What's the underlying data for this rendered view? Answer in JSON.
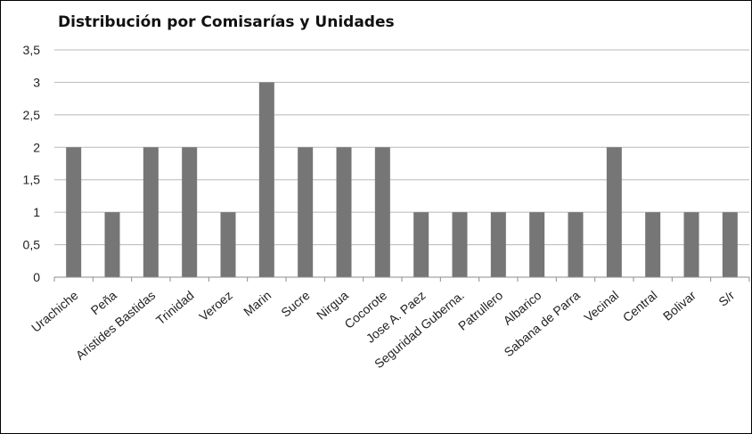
{
  "chart_data": {
    "type": "bar",
    "title": "Distribución por Comisarías y Unidades",
    "xlabel": "",
    "ylabel": "",
    "ylim": [
      0,
      3.5
    ],
    "yticks": [
      "0",
      "0,5",
      "1",
      "1,5",
      "2",
      "2,5",
      "3",
      "3,5"
    ],
    "grid": true,
    "legend": "none",
    "bar_color": "#767676",
    "categories": [
      "Urachiche",
      "Peña",
      "Aristides Bastidas",
      "Trinidad",
      "Veroez",
      "Marin",
      "Sucre",
      "Nirgua",
      "Cocorote",
      "Jose A. Paez",
      "Seguridad Guberna.",
      "Patrullero",
      "Albarico",
      "Sabana de Parra",
      "Vecinal",
      "Central",
      "Bolivar",
      "S/r"
    ],
    "values": [
      2,
      1,
      2,
      2,
      1,
      3,
      2,
      2,
      2,
      1,
      1,
      1,
      1,
      1,
      2,
      1,
      1,
      1
    ]
  }
}
